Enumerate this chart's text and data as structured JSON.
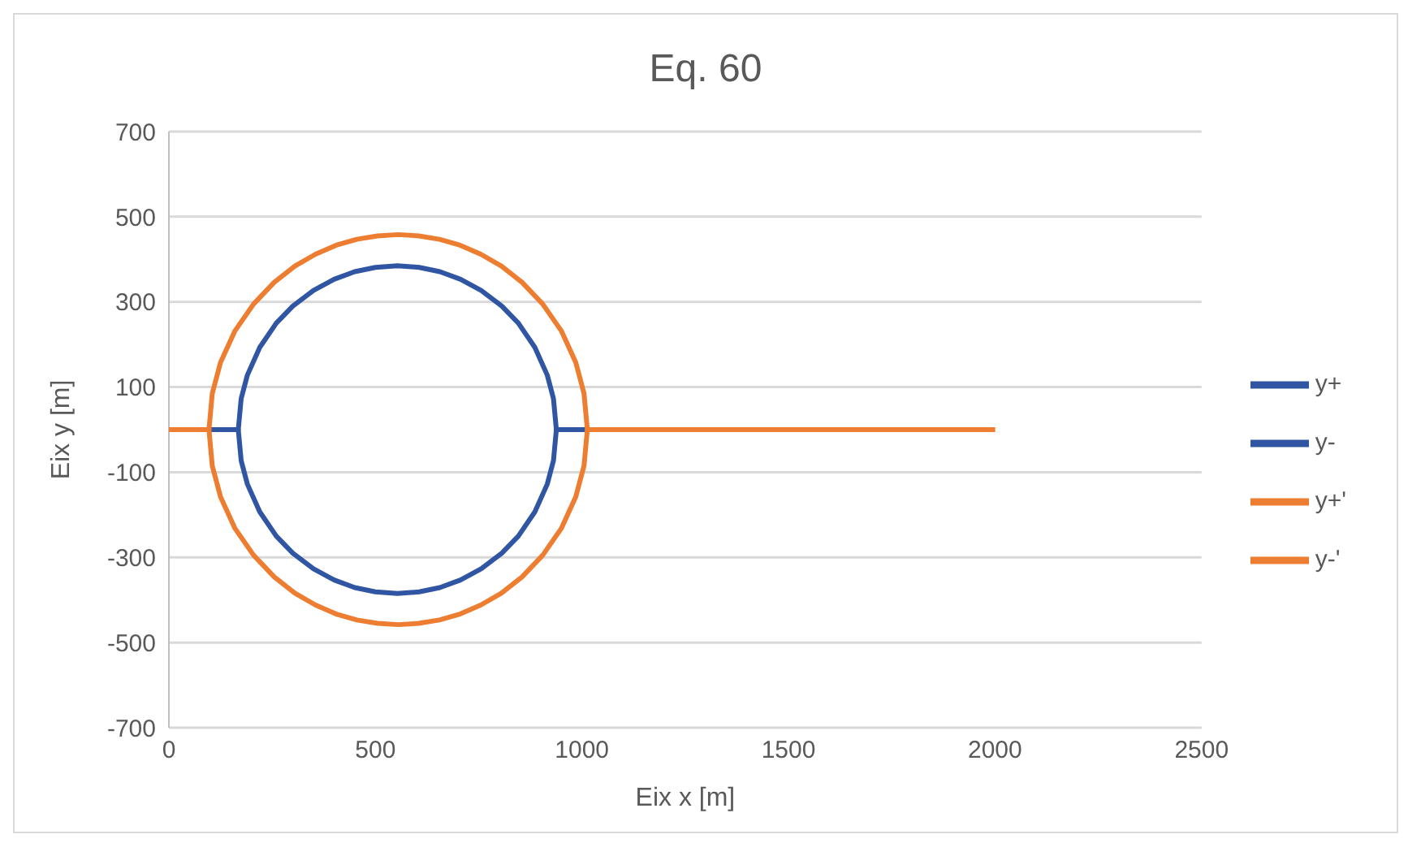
{
  "chart_data": {
    "type": "line",
    "title": "Eq. 60",
    "xlabel": "Eix x [m]",
    "ylabel": "Eix y [m]",
    "xlim": [
      0,
      2500
    ],
    "xticks": [
      0,
      500,
      1000,
      1500,
      2000,
      2500
    ],
    "ylim": [
      -700,
      700
    ],
    "yticks": [
      -700,
      -500,
      -300,
      -100,
      100,
      300,
      500,
      700
    ],
    "grid": "y",
    "legend": "right",
    "marker": "none",
    "line_style": "solid",
    "series": [
      {
        "name": "y+",
        "color": "#2f55a3",
        "x": [
          97,
          168,
          175,
          190,
          220,
          260,
          300,
          350,
          400,
          450,
          500,
          553,
          606,
          656,
          706,
          756,
          806,
          846,
          886,
          916,
          931,
          938,
          1013
        ],
        "values": [
          0,
          0,
          73,
          128,
          193,
          250,
          290,
          327,
          353,
          371,
          381,
          385,
          381,
          371,
          353,
          327,
          290,
          250,
          193,
          128,
          73,
          0,
          0
        ]
      },
      {
        "name": "y-",
        "color": "#2f55a3",
        "x": [
          97,
          168,
          175,
          190,
          220,
          260,
          300,
          350,
          400,
          450,
          500,
          553,
          606,
          656,
          706,
          756,
          806,
          846,
          886,
          916,
          931,
          938,
          1013
        ],
        "values": [
          0,
          0,
          -73,
          -128,
          -193,
          -250,
          -290,
          -327,
          -353,
          -371,
          -381,
          -385,
          -381,
          -371,
          -353,
          -327,
          -290,
          -250,
          -193,
          -128,
          -73,
          0,
          0
        ]
      },
      {
        "name": "y+'",
        "color": "#ed7d31",
        "x": [
          0,
          97,
          105,
          125,
          160,
          205,
          255,
          305,
          355,
          405,
          455,
          505,
          555,
          605,
          655,
          705,
          755,
          805,
          855,
          905,
          950,
          985,
          1005,
          1013,
          2000
        ],
        "values": [
          0,
          0,
          85,
          158,
          232,
          295,
          346,
          384,
          412,
          433,
          447,
          455,
          458,
          455,
          447,
          433,
          412,
          384,
          346,
          295,
          232,
          158,
          85,
          0,
          0
        ]
      },
      {
        "name": "y-'",
        "color": "#ed7d31",
        "x": [
          0,
          97,
          105,
          125,
          160,
          205,
          255,
          305,
          355,
          405,
          455,
          505,
          555,
          605,
          655,
          705,
          755,
          805,
          855,
          905,
          950,
          985,
          1005,
          1013,
          2000
        ],
        "values": [
          0,
          0,
          -85,
          -158,
          -232,
          -295,
          -346,
          -384,
          -412,
          -433,
          -447,
          -455,
          -458,
          -455,
          -447,
          -433,
          -412,
          -384,
          -346,
          -295,
          -232,
          -158,
          -85,
          0,
          0
        ]
      }
    ]
  }
}
